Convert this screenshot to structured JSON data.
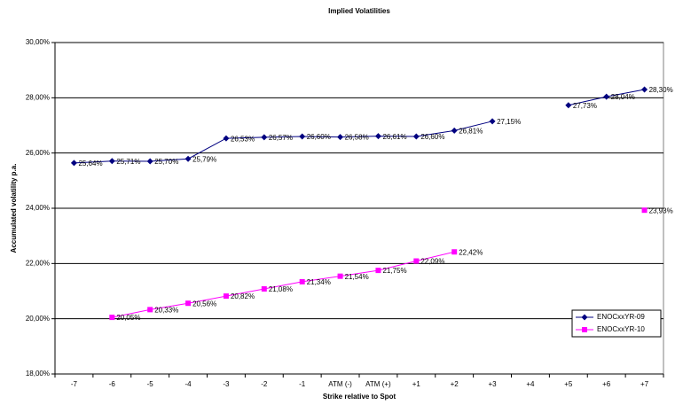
{
  "chart_data": {
    "type": "line",
    "title": "Implied Volatilities",
    "x_label": "Strike relative to Spot",
    "y_label": "Accumulated volatility p.a.",
    "categories": [
      "-7",
      "-6",
      "-5",
      "-4",
      "-3",
      "-2",
      "-1",
      "ATM (-)",
      "ATM (+)",
      "+1",
      "+2",
      "+3",
      "+4",
      "+5",
      "+6",
      "+7"
    ],
    "series": [
      {
        "name": "ENOCxxYR-09",
        "color": "#000080",
        "marker": "diamond",
        "values": [
          25.64,
          25.71,
          25.7,
          25.79,
          26.53,
          26.57,
          26.6,
          26.58,
          26.61,
          26.6,
          26.81,
          27.15,
          null,
          27.73,
          28.04,
          28.3
        ],
        "value_labels": [
          "25,64%",
          "25,71%",
          "25,70%",
          "25,79%",
          "26,53%",
          "26,57%",
          "26,60%",
          "26,58%",
          "26,61%",
          "26,60%",
          "26,81%",
          "27,15%",
          null,
          "27,73%",
          "28,04%",
          "28,30%"
        ]
      },
      {
        "name": "ENOCxxYR-10",
        "color": "#ff00ff",
        "marker": "square",
        "values": [
          null,
          20.05,
          20.33,
          20.56,
          20.82,
          21.08,
          21.34,
          21.54,
          21.75,
          22.09,
          22.42,
          null,
          null,
          null,
          null,
          23.93
        ],
        "value_labels": [
          null,
          "20,05%",
          "20,33%",
          "20,56%",
          "20,82%",
          "21,08%",
          "21,34%",
          "21,54%",
          "21,75%",
          "22,09%",
          "22,42%",
          null,
          null,
          null,
          null,
          "23,93%"
        ]
      }
    ],
    "ylim": [
      18,
      30
    ],
    "yticks": [
      {
        "value": 18,
        "label": "18,00%"
      },
      {
        "value": 20,
        "label": "20,00%"
      },
      {
        "value": 22,
        "label": "22,00%"
      },
      {
        "value": 24,
        "label": "24,00%"
      },
      {
        "value": 26,
        "label": "26,00%"
      },
      {
        "value": 28,
        "label": "28,00%"
      },
      {
        "value": 30,
        "label": "30,00%"
      }
    ],
    "grid": true,
    "legend": "right"
  }
}
